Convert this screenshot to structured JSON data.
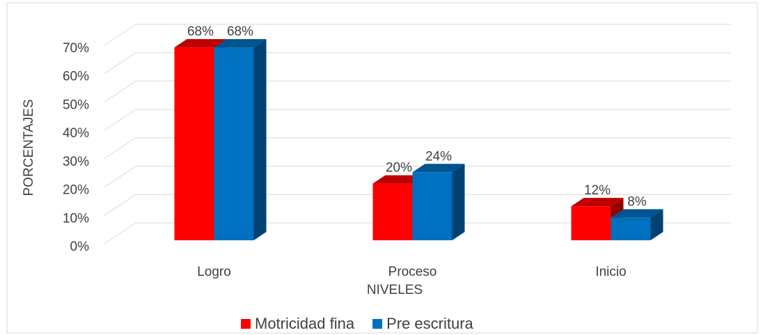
{
  "chart_data": {
    "type": "bar3d",
    "categories": [
      "Logro",
      "Proceso",
      "Inicio"
    ],
    "series": [
      {
        "name": "Motricidad fina",
        "color": "#ff0000",
        "values": [
          68,
          20,
          12
        ],
        "value_labels": [
          "68%",
          "20%",
          "12%"
        ]
      },
      {
        "name": "Pre escritura",
        "color": "#0070c0",
        "values": [
          68,
          24,
          8
        ],
        "value_labels": [
          "68%",
          "24%",
          "8%"
        ]
      }
    ],
    "ylabel": "PORCENTAJES",
    "xlabel": "NIVELES",
    "ylim": [
      0,
      70
    ],
    "yticks": [
      {
        "value": 0,
        "label": "0%"
      },
      {
        "value": 10,
        "label": "10%"
      },
      {
        "value": 20,
        "label": "20%"
      },
      {
        "value": 30,
        "label": "30%"
      },
      {
        "value": 40,
        "label": "40%"
      },
      {
        "value": 50,
        "label": "50%"
      },
      {
        "value": 60,
        "label": "60%"
      },
      {
        "value": 70,
        "label": "70%"
      }
    ],
    "grid": true,
    "legend": "bottom"
  }
}
